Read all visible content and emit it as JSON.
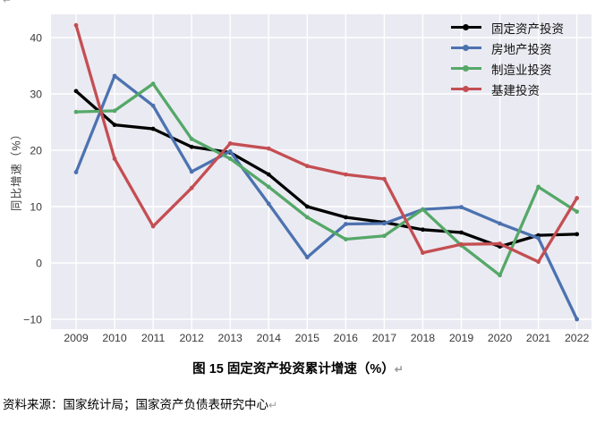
{
  "page": {
    "paragraph_mark": "↵"
  },
  "chart": {
    "ylabel": "同比增速（%）",
    "caption": "图 15 固定资产投资累计增速（%）",
    "source_note": "资料来源：国家统计局；国家资产负债表研究中心",
    "plot_bg_color": "#EAEAF2",
    "grid_color": "#FFFFFF",
    "tick_color": "#3a3a3a"
  },
  "chart_data": {
    "type": "line",
    "title": "图 15 固定资产投资累计增速（%）",
    "xlabel": "",
    "ylabel": "同比增速（%）",
    "grid": true,
    "legend_position": "upper right",
    "categories": [
      "2009",
      "2010",
      "2011",
      "2012",
      "2013",
      "2014",
      "2015",
      "2016",
      "2017",
      "2018",
      "2019",
      "2020",
      "2021",
      "2022"
    ],
    "yticks": [
      40,
      30,
      20,
      10,
      0,
      -10
    ],
    "ytick_labels": [
      "40",
      "30",
      "20",
      "10",
      "0",
      "−10"
    ],
    "ylim": [
      -11.7,
      44.2
    ],
    "series": [
      {
        "name": "固定资产投资",
        "color": "#000000",
        "values": [
          30.5,
          24.5,
          23.8,
          20.6,
          19.6,
          15.7,
          10.0,
          8.1,
          7.2,
          5.9,
          5.4,
          2.9,
          4.9,
          5.1
        ]
      },
      {
        "name": "房地产投资",
        "color": "#4C72B0",
        "values": [
          16.1,
          33.2,
          27.9,
          16.2,
          19.8,
          10.5,
          1.0,
          6.9,
          7.0,
          9.5,
          9.9,
          7.0,
          4.4,
          -10.0
        ]
      },
      {
        "name": "制造业投资",
        "color": "#55A868",
        "values": [
          26.8,
          27.0,
          31.8,
          22.0,
          18.5,
          13.5,
          8.1,
          4.2,
          4.8,
          9.5,
          3.1,
          -2.2,
          13.5,
          9.1
        ]
      },
      {
        "name": "基建投资",
        "color": "#C44E52",
        "values": [
          42.2,
          18.5,
          6.5,
          13.3,
          21.2,
          20.3,
          17.2,
          15.7,
          14.9,
          1.8,
          3.3,
          3.4,
          0.2,
          11.5
        ]
      }
    ]
  }
}
